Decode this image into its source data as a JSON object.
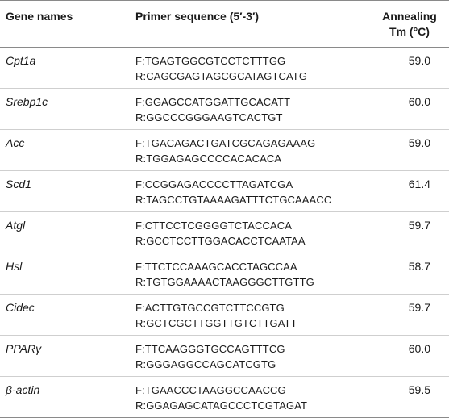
{
  "header": {
    "gene": "Gene names",
    "primer": "Primer sequence (5′-3′)",
    "tm_line1": "Annealing",
    "tm_line2": "Tm (°C)"
  },
  "rows": [
    {
      "gene": "Cpt1a",
      "f": "F:TGAGTGGCGTCCTCTTTGG",
      "r": "R:CAGCGAGTAGCGCATAGTCATG",
      "tm": "59.0"
    },
    {
      "gene": "Srebp1c",
      "f": "F:GGAGCCATGGATTGCACATT",
      "r": "R:GGCCCGGGAAGTCACTGT",
      "tm": "60.0"
    },
    {
      "gene": "Acc",
      "f": "F:TGACAGACTGATCGCAGAGAAAG",
      "r": "R:TGGAGAGCCCCACACACA",
      "tm": "59.0"
    },
    {
      "gene": "Scd1",
      "f": "F:CCGGAGACCCCTTAGATCGA",
      "r": "R:TAGCCTGTAAAAGATTTCTGCAAACC",
      "tm": "61.4"
    },
    {
      "gene": "Atgl",
      "f": "F:CTTCCTCGGGGTCTACCACA",
      "r": "R:GCCTCCTTGGACACCTCAATAA",
      "tm": "59.7"
    },
    {
      "gene": "Hsl",
      "f": "F:TTCTCCAAAGCACCTAGCCAA",
      "r": "R:TGTGGAAAACTAAGGGCTTGTTG",
      "tm": "58.7"
    },
    {
      "gene": "Cidec",
      "f": "F:ACTTGTGCCGTCTTCCGTG",
      "r": "R:GCTCGCTTGGTTGTCTTGATT",
      "tm": "59.7"
    },
    {
      "gene": "PPARγ",
      "f": "F:TTCAAGGGTGCCAGTTTCG",
      "r": "R:GGGAGGCCAGCATCGTG",
      "tm": "60.0"
    },
    {
      "gene": "β-actin",
      "f": "F:TGAACCCTAAGGCCAACCG",
      "r": "R:GGAGAGCATAGCCCTCGTAGAT",
      "tm": "59.5"
    }
  ]
}
